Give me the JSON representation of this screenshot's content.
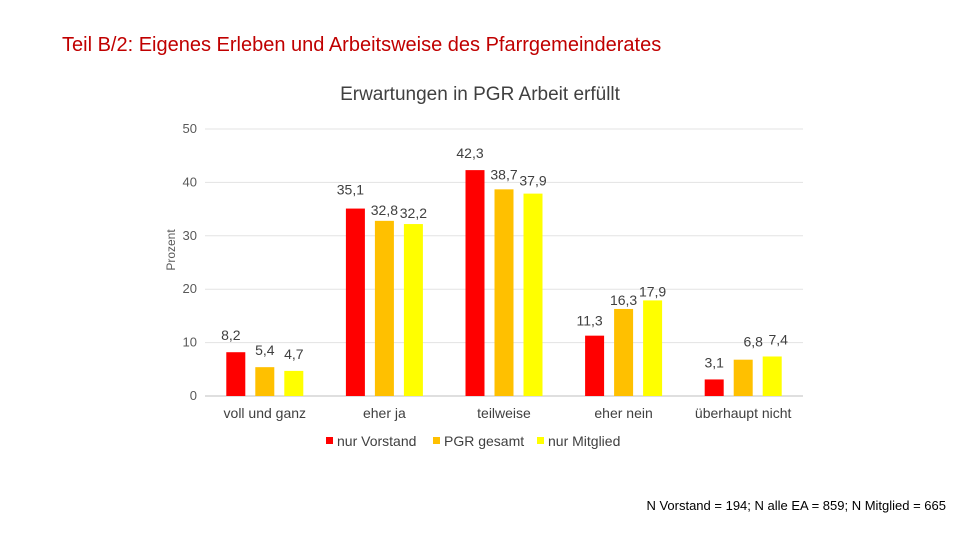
{
  "slide_title": "Teil B/2: Eigenes Erleben und Arbeitsweise des Pfarrgemeinderates",
  "footnote": "N Vorstand = 194; N alle EA = 859; N Mitglied = 665",
  "chart_data": {
    "type": "bar",
    "title": "Erwartungen in PGR Arbeit erfüllt",
    "xlabel": "",
    "ylabel": "Prozent",
    "ylim": [
      0,
      50
    ],
    "yticks": [
      0,
      10,
      20,
      30,
      40,
      50
    ],
    "grid": true,
    "legend_position": "bottom",
    "categories": [
      "voll und ganz",
      "eher ja",
      "teilweise",
      "eher nein",
      "überhaupt nicht"
    ],
    "series": [
      {
        "name": "nur Vorstand",
        "color": "#ff0000",
        "values": [
          8.2,
          35.1,
          42.3,
          11.3,
          3.1
        ],
        "labels": [
          "8,2",
          "35,1",
          "42,3",
          "11,3",
          "3,1"
        ]
      },
      {
        "name": "PGR gesamt",
        "color": "#ffc000",
        "values": [
          5.4,
          32.8,
          38.7,
          16.3,
          6.8
        ],
        "labels": [
          "5,4",
          "32,8",
          "38,7",
          "16,3",
          "6,8"
        ]
      },
      {
        "name": "nur Mitglied",
        "color": "#ffff00",
        "values": [
          4.7,
          32.2,
          37.9,
          17.9,
          7.4
        ],
        "labels": [
          "4,7",
          "32,2",
          "37,9",
          "17,9",
          "7,4"
        ]
      }
    ]
  }
}
